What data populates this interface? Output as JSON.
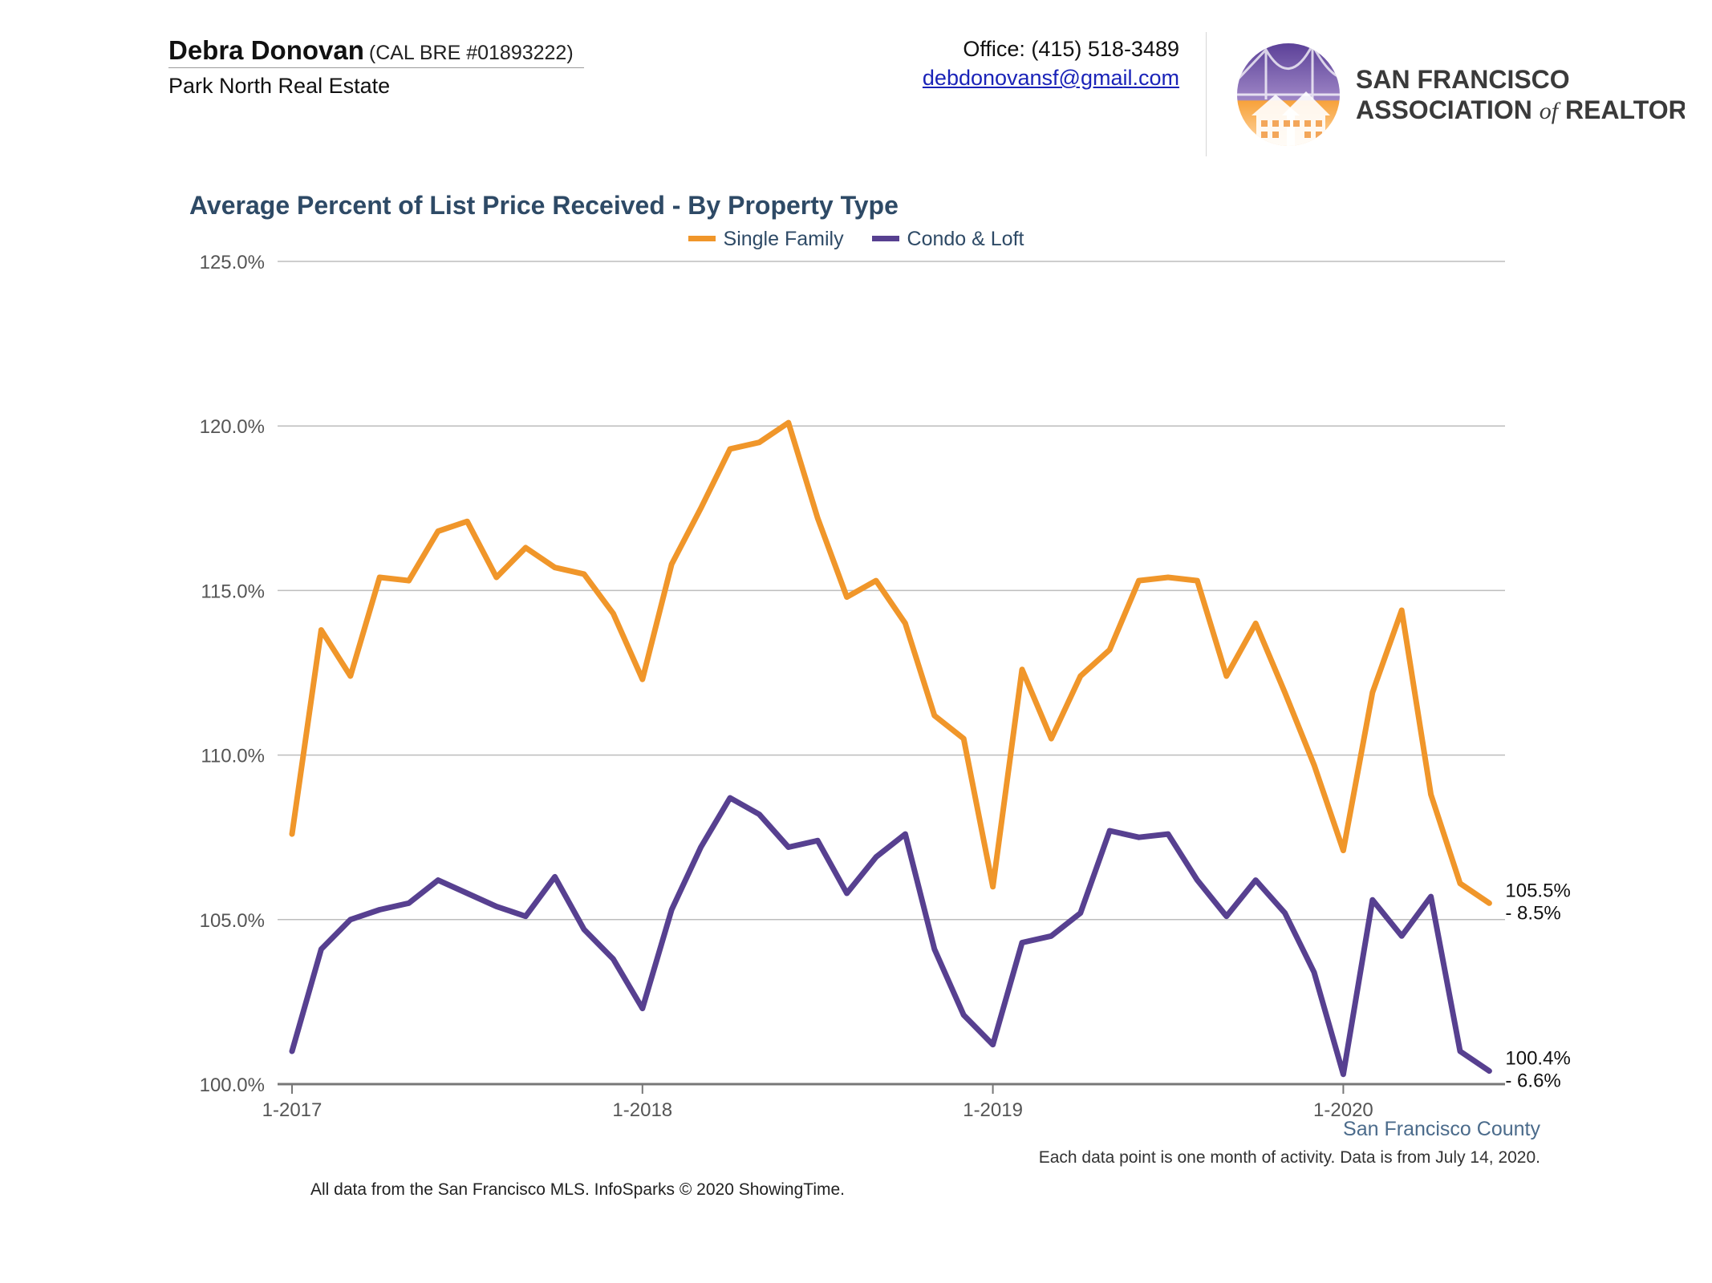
{
  "header": {
    "agent_name": "Debra Donovan",
    "agent_license": "(CAL BRE #01893222)",
    "company": "Park North Real Estate",
    "office_phone": "Office: (415) 518-3489",
    "email": "debdonovansf@gmail.com",
    "logo_text_line1": "SAN FRANCISCO",
    "logo_text_line2": "ASSOCIATION",
    "logo_text_of": "of",
    "logo_text_line3": "REALTORS",
    "logo_text_reg": "®"
  },
  "colors": {
    "single_family": "#f0962a",
    "condo_loft": "#574090",
    "title": "#2e4a66",
    "grid": "#bdbdbd",
    "axis": "#777777"
  },
  "chart_data": {
    "type": "line",
    "title": "Average Percent of List Price Received - By Property Type",
    "ylim": [
      100,
      125
    ],
    "yticks": [
      100,
      105,
      110,
      115,
      120,
      125
    ],
    "ytick_labels": [
      "100.0%",
      "105.0%",
      "110.0%",
      "115.0%",
      "120.0%",
      "125.0%"
    ],
    "xticks": [
      {
        "label": "1-2017",
        "index": 0
      },
      {
        "label": "1-2018",
        "index": 12
      },
      {
        "label": "1-2019",
        "index": 24
      },
      {
        "label": "1-2020",
        "index": 36
      }
    ],
    "grid": true,
    "legend_position": "top-center",
    "region": "San Francisco County",
    "series": [
      {
        "name": "Single Family",
        "color": "#f0962a",
        "values": [
          107.6,
          113.8,
          112.4,
          115.4,
          115.3,
          116.8,
          117.1,
          115.4,
          116.3,
          115.7,
          115.5,
          114.3,
          112.3,
          115.8,
          117.5,
          119.3,
          119.5,
          120.1,
          117.2,
          114.8,
          115.3,
          114.0,
          111.2,
          110.5,
          106.0,
          112.6,
          110.5,
          112.4,
          113.2,
          115.3,
          115.4,
          115.3,
          112.4,
          114.0,
          111.9,
          109.7,
          107.1,
          111.9,
          114.4,
          108.8,
          106.1,
          105.5
        ],
        "end_label": "105.5%",
        "end_change": "- 8.5%"
      },
      {
        "name": "Condo & Loft",
        "color": "#574090",
        "values": [
          101.0,
          104.1,
          105.0,
          105.3,
          105.5,
          106.2,
          105.8,
          105.4,
          105.1,
          106.3,
          104.7,
          103.8,
          102.3,
          105.3,
          107.2,
          108.7,
          108.2,
          107.2,
          107.4,
          105.8,
          106.9,
          107.6,
          104.1,
          102.1,
          101.2,
          104.3,
          104.5,
          105.2,
          107.7,
          107.5,
          107.6,
          106.2,
          105.1,
          106.2,
          105.2,
          103.4,
          100.3,
          105.6,
          104.5,
          105.7,
          101.0,
          100.4
        ],
        "end_label": "100.4%",
        "end_change": "- 6.6%"
      }
    ]
  },
  "footer": {
    "county": "San Francisco County",
    "note": "Each data point is one month of activity. Data is from July 14, 2020.",
    "source": "All data from the San Francisco MLS. InfoSparks © 2020 ShowingTime."
  }
}
